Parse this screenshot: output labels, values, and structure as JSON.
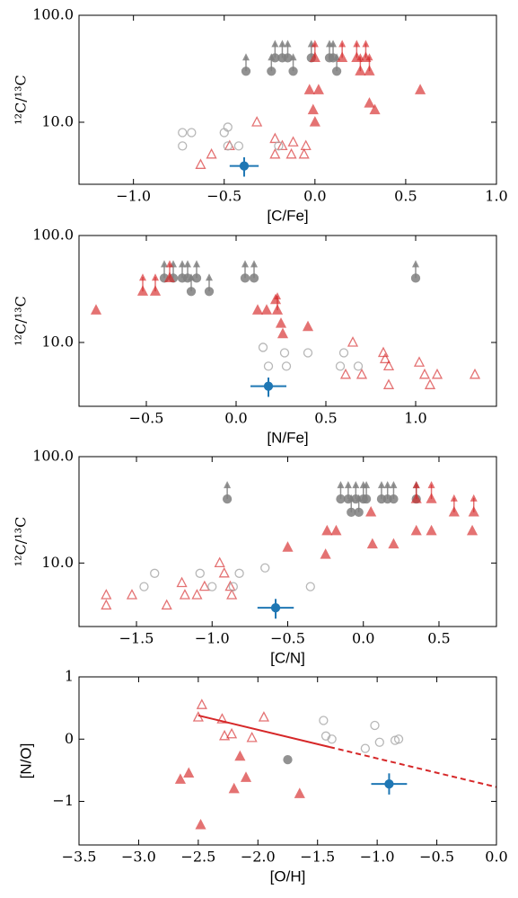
{
  "chart_data": [
    {
      "type": "scatter",
      "xlabel": "[C/Fe]",
      "ylabel": "¹²C/¹³C",
      "yscale": "log",
      "xlim": [
        -1.3,
        1.0
      ],
      "ylim": [
        2.63,
        100
      ],
      "xticks": [
        {
          "value": -1.0,
          "label": "−1.0"
        },
        {
          "value": -0.5,
          "label": "−0.5"
        },
        {
          "value": 0.0,
          "label": "0.0"
        },
        {
          "value": 0.5,
          "label": "0.5"
        },
        {
          "value": 1.0,
          "label": "1.0"
        }
      ],
      "yticks": [
        {
          "value": 10,
          "label": "10.0"
        },
        {
          "value": 100,
          "label": "100.0"
        }
      ],
      "series": [
        {
          "marker": "circle",
          "filled": true,
          "arrow": true,
          "color": "#808080",
          "x": [
            -0.38,
            -0.24,
            -0.22,
            -0.18,
            -0.15,
            -0.12,
            -0.02,
            0.08,
            0.1,
            0.12
          ],
          "values": [
            30,
            30,
            40,
            40,
            40,
            30,
            40,
            40,
            40,
            30
          ]
        },
        {
          "marker": "triangle",
          "filled": true,
          "arrow": true,
          "color": "#d62728",
          "x": [
            0.0,
            0.15,
            0.23,
            0.25,
            0.28,
            0.3
          ],
          "values": [
            40,
            40,
            40,
            30,
            40,
            30
          ]
        },
        {
          "marker": "triangle",
          "filled": true,
          "color": "#d62728",
          "x": [
            -0.03,
            -0.01,
            0.0,
            0.02,
            0.3,
            0.33,
            0.58
          ],
          "values": [
            20,
            13,
            10,
            20,
            15,
            13,
            20
          ]
        },
        {
          "marker": "triangle",
          "filled": false,
          "color": "#d62728",
          "x": [
            -0.63,
            -0.57,
            -0.47,
            -0.32,
            -0.22,
            -0.22,
            -0.18,
            -0.13,
            -0.12,
            -0.06,
            -0.05
          ],
          "values": [
            4,
            5,
            6,
            10,
            7,
            5,
            6,
            5,
            6.5,
            5,
            6
          ]
        },
        {
          "marker": "circle",
          "filled": false,
          "color": "#aaaaaa",
          "x": [
            -0.73,
            -0.73,
            -0.68,
            -0.5,
            -0.48,
            -0.48,
            -0.42,
            -0.2
          ],
          "values": [
            6,
            8,
            8,
            8,
            9,
            6,
            6,
            6
          ]
        },
        {
          "marker": "circle",
          "filled": true,
          "color": "#1f77b4",
          "x": [
            -0.39
          ],
          "values": [
            3.9
          ],
          "xerr": [
            0.08
          ],
          "yerr": [
            0.8
          ]
        }
      ]
    },
    {
      "type": "scatter",
      "xlabel": "[N/Fe]",
      "ylabel": "¹²C/¹³C",
      "yscale": "log",
      "xlim": [
        -0.875,
        1.45
      ],
      "ylim": [
        2.53,
        100
      ],
      "xticks": [
        {
          "value": -0.5,
          "label": "−0.5"
        },
        {
          "value": 0.0,
          "label": "0.0"
        },
        {
          "value": 0.5,
          "label": "0.5"
        },
        {
          "value": 1.0,
          "label": "1.0"
        }
      ],
      "yticks": [
        {
          "value": 10,
          "label": "10.0"
        },
        {
          "value": 100,
          "label": "100.0"
        }
      ],
      "series": [
        {
          "marker": "circle",
          "filled": true,
          "arrow": true,
          "color": "#808080",
          "x": [
            -0.4,
            -0.35,
            -0.3,
            -0.27,
            -0.25,
            -0.22,
            -0.15,
            0.05,
            0.1,
            1.0
          ],
          "values": [
            40,
            40,
            40,
            40,
            30,
            40,
            30,
            40,
            40,
            40
          ]
        },
        {
          "marker": "triangle",
          "filled": true,
          "arrow": true,
          "color": "#d62728",
          "x": [
            -0.52,
            -0.45,
            -0.37,
            0.23
          ],
          "values": [
            30,
            30,
            40,
            20
          ]
        },
        {
          "marker": "triangle",
          "filled": true,
          "color": "#d62728",
          "x": [
            -0.78,
            0.12,
            0.17,
            0.22,
            0.25,
            0.26,
            0.4
          ],
          "values": [
            20,
            20,
            20,
            25,
            15,
            12,
            14
          ]
        },
        {
          "marker": "triangle",
          "filled": false,
          "color": "#d62728",
          "x": [
            0.61,
            0.65,
            0.7,
            0.82,
            0.83,
            0.85,
            0.85,
            1.02,
            1.05,
            1.08,
            1.12,
            1.33
          ],
          "values": [
            5,
            10,
            5,
            8,
            7,
            4,
            6,
            6.5,
            5,
            4,
            5,
            5
          ]
        },
        {
          "marker": "circle",
          "filled": false,
          "color": "#aaaaaa",
          "x": [
            0.15,
            0.18,
            0.27,
            0.28,
            0.4,
            0.58,
            0.6,
            0.68
          ],
          "values": [
            9,
            6,
            8,
            6,
            8,
            6,
            8,
            6
          ]
        },
        {
          "marker": "circle",
          "filled": true,
          "color": "#1f77b4",
          "x": [
            0.18
          ],
          "values": [
            3.9
          ],
          "xerr": [
            0.1
          ],
          "yerr": [
            0.8
          ]
        }
      ]
    },
    {
      "type": "scatter",
      "xlabel": "[C/N]",
      "ylabel": "¹²C/¹³C",
      "yscale": "log",
      "xlim": [
        -1.88,
        0.88
      ],
      "ylim": [
        2.53,
        100
      ],
      "xticks": [
        {
          "value": -1.5,
          "label": "−1.5"
        },
        {
          "value": -1.0,
          "label": "−1.0"
        },
        {
          "value": -0.5,
          "label": "−0.5"
        },
        {
          "value": 0.0,
          "label": "0.0"
        },
        {
          "value": 0.5,
          "label": "0.5"
        }
      ],
      "yticks": [
        {
          "value": 10,
          "label": "10.0"
        },
        {
          "value": 100,
          "label": "100.0"
        }
      ],
      "series": [
        {
          "marker": "circle",
          "filled": true,
          "arrow": true,
          "color": "#808080",
          "x": [
            -0.9,
            -0.15,
            -0.1,
            -0.08,
            -0.05,
            -0.03,
            0.0,
            0.02,
            0.12,
            0.16,
            0.2,
            0.35
          ],
          "values": [
            40,
            40,
            40,
            30,
            40,
            30,
            40,
            40,
            40,
            40,
            40,
            40
          ]
        },
        {
          "marker": "triangle",
          "filled": true,
          "arrow": true,
          "color": "#d62728",
          "x": [
            0.35,
            0.45,
            0.6,
            0.73
          ],
          "values": [
            40,
            40,
            30,
            30
          ]
        },
        {
          "marker": "triangle",
          "filled": true,
          "color": "#d62728",
          "x": [
            -0.5,
            -0.25,
            -0.24,
            -0.18,
            0.05,
            0.06,
            0.2,
            0.35,
            0.45,
            0.72
          ],
          "values": [
            14,
            12,
            20,
            20,
            30,
            15,
            15,
            20,
            20,
            20
          ]
        },
        {
          "marker": "triangle",
          "filled": false,
          "color": "#d62728",
          "x": [
            -1.7,
            -1.7,
            -1.53,
            -1.3,
            -1.2,
            -1.18,
            -1.1,
            -1.05,
            -0.95,
            -0.92,
            -0.88,
            -0.87
          ],
          "values": [
            4,
            5,
            5,
            4,
            6.5,
            5,
            5,
            6,
            10,
            8,
            6,
            5
          ]
        },
        {
          "marker": "circle",
          "filled": false,
          "color": "#aaaaaa",
          "x": [
            -1.45,
            -1.38,
            -1.08,
            -1.0,
            -0.86,
            -0.82,
            -0.65,
            -0.35
          ],
          "values": [
            6,
            8,
            8,
            6,
            6,
            8,
            9,
            6
          ]
        },
        {
          "marker": "circle",
          "filled": true,
          "color": "#1f77b4",
          "x": [
            -0.58
          ],
          "values": [
            3.8
          ],
          "xerr": [
            0.12
          ],
          "yerr": [
            0.8
          ]
        }
      ]
    },
    {
      "type": "scatter",
      "xlabel": "[O/H]",
      "ylabel": "[N/O]",
      "xlim": [
        -3.5,
        0.0
      ],
      "ylim": [
        -1.7,
        1
      ],
      "xticks": [
        {
          "value": -3.5,
          "label": "−3.5"
        },
        {
          "value": -3.0,
          "label": "−3.0"
        },
        {
          "value": -2.5,
          "label": "−2.5"
        },
        {
          "value": -2.0,
          "label": "−2.0"
        },
        {
          "value": -1.5,
          "label": "−1.5"
        },
        {
          "value": -1.0,
          "label": "−1.0"
        },
        {
          "value": -0.5,
          "label": "−0.5"
        },
        {
          "value": 0.0,
          "label": "0.0"
        }
      ],
      "yticks": [
        {
          "value": -1,
          "label": "−1"
        },
        0,
        1
      ],
      "series": [
        {
          "type": "line",
          "color": "#d62728",
          "x": [
            -2.5,
            -1.4
          ],
          "values": [
            0.38,
            -0.126
          ]
        },
        {
          "type": "line",
          "color": "#d62728",
          "dashed": true,
          "x": [
            -1.4,
            0.0
          ],
          "values": [
            -0.126,
            -0.77
          ]
        },
        {
          "marker": "triangle",
          "filled": false,
          "color": "#d62728",
          "x": [
            -2.47,
            -2.5,
            -2.3,
            -2.28,
            -2.22,
            -2.05,
            -1.95
          ],
          "values": [
            0.55,
            0.35,
            0.32,
            0.05,
            0.08,
            0.02,
            0.35
          ]
        },
        {
          "marker": "triangle",
          "filled": true,
          "color": "#d62728",
          "x": [
            -2.65,
            -2.58,
            -2.48,
            -2.2,
            -2.15,
            -2.1,
            -1.65
          ],
          "values": [
            -0.65,
            -0.55,
            -1.38,
            -0.8,
            -0.28,
            -0.62,
            -0.88
          ]
        },
        {
          "marker": "circle",
          "filled": true,
          "color": "#808080",
          "x": [
            -1.75
          ],
          "values": [
            -0.33
          ]
        },
        {
          "marker": "circle",
          "filled": false,
          "color": "#aaaaaa",
          "x": [
            -1.45,
            -1.43,
            -1.38,
            -1.1,
            -1.02,
            -0.98,
            -0.85,
            -0.82
          ],
          "values": [
            0.3,
            0.05,
            0.0,
            -0.15,
            0.22,
            -0.05,
            -0.02,
            0.0
          ]
        },
        {
          "marker": "circle",
          "filled": true,
          "color": "#1f77b4",
          "x": [
            -0.9
          ],
          "values": [
            -0.72
          ],
          "xerr": [
            0.15
          ],
          "yerr": [
            0.17
          ]
        }
      ]
    }
  ]
}
